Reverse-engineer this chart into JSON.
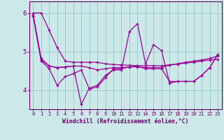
{
  "xlabel": "Windchill (Refroidissement éolien,°C)",
  "background_color": "#cce8e8",
  "line_color": "#990099",
  "grid_color": "#99cccc",
  "axis_color": "#660066",
  "text_color": "#660066",
  "xlim": [
    -0.5,
    23.5
  ],
  "ylim": [
    3.5,
    6.3
  ],
  "yticks": [
    4,
    5,
    6
  ],
  "xticks": [
    0,
    1,
    2,
    3,
    4,
    5,
    6,
    7,
    8,
    9,
    10,
    11,
    12,
    13,
    14,
    15,
    16,
    17,
    18,
    19,
    20,
    21,
    22,
    23
  ],
  "series": [
    [
      6.0,
      6.0,
      5.55,
      5.1,
      4.75,
      4.72,
      4.72,
      4.72,
      4.72,
      4.68,
      4.66,
      4.65,
      4.64,
      4.63,
      4.63,
      4.63,
      4.63,
      4.65,
      4.67,
      4.7,
      4.72,
      4.75,
      4.78,
      4.8
    ],
    [
      5.95,
      4.82,
      4.62,
      4.58,
      4.6,
      4.62,
      3.62,
      4.05,
      4.12,
      4.38,
      4.52,
      4.52,
      5.52,
      5.72,
      4.68,
      5.18,
      5.02,
      4.18,
      4.22,
      4.22,
      4.22,
      4.38,
      4.58,
      4.92
    ],
    [
      5.92,
      4.78,
      4.62,
      4.58,
      4.6,
      4.62,
      4.62,
      4.58,
      4.52,
      4.55,
      4.58,
      4.58,
      4.6,
      4.6,
      4.58,
      4.58,
      4.58,
      4.65,
      4.68,
      4.72,
      4.75,
      4.78,
      4.82,
      4.88
    ],
    [
      5.92,
      4.75,
      4.55,
      4.12,
      4.35,
      4.42,
      4.52,
      4.02,
      4.08,
      4.32,
      4.55,
      4.55,
      4.6,
      4.62,
      4.55,
      4.55,
      4.55,
      4.22,
      4.22,
      4.22,
      4.22,
      4.38,
      4.58,
      4.92
    ]
  ]
}
